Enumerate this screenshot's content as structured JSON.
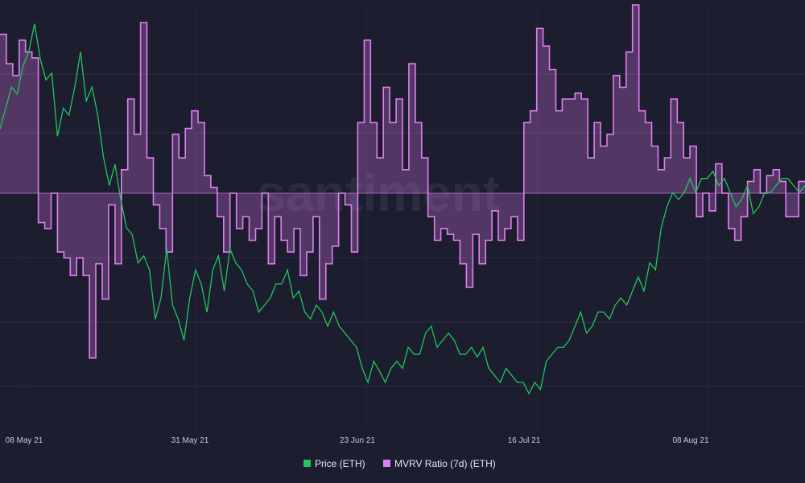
{
  "chart_data": {
    "type": "line",
    "title": "",
    "xlabel": "",
    "ylabel": "",
    "x_ticks": [
      "08 May 21",
      "31 May 21",
      "23 Jun 21",
      "16 Jul 21",
      "08 Aug 21"
    ],
    "grid": true,
    "watermark": "santiment",
    "legend": {
      "placement": "bottom-center"
    },
    "series": [
      {
        "name": "Price (ETH)",
        "color": "#22c55e",
        "values": [
          3600,
          3750,
          3900,
          3850,
          4050,
          4150,
          4350,
          4100,
          3950,
          4000,
          3550,
          3750,
          3700,
          3900,
          4150,
          3800,
          3900,
          3700,
          3400,
          3200,
          3350,
          3100,
          2900,
          2850,
          2650,
          2700,
          2600,
          2250,
          2400,
          2750,
          2350,
          2250,
          2100,
          2400,
          2600,
          2500,
          2300,
          2600,
          2700,
          2450,
          2750,
          2650,
          2600,
          2500,
          2450,
          2300,
          2350,
          2400,
          2500,
          2500,
          2600,
          2400,
          2450,
          2300,
          2250,
          2350,
          2300,
          2200,
          2300,
          2200,
          2150,
          2100,
          2050,
          1900,
          1800,
          1950,
          1880,
          1800,
          1900,
          1950,
          1900,
          2050,
          2000,
          2000,
          2150,
          2200,
          2050,
          2100,
          2150,
          2100,
          2000,
          2000,
          2050,
          1980,
          2050,
          1900,
          1850,
          1800,
          1900,
          1850,
          1800,
          1800,
          1720,
          1800,
          1750,
          1950,
          2000,
          2050,
          2050,
          2100,
          2200,
          2300,
          2150,
          2200,
          2300,
          2300,
          2250,
          2350,
          2400,
          2350,
          2450,
          2550,
          2450,
          2650,
          2600,
          2900,
          3050,
          3150,
          3100,
          3150,
          3250,
          3150,
          3250,
          3250,
          3300,
          3200,
          3250,
          3150,
          3050,
          3100,
          3200,
          3000,
          3050,
          3150,
          3150,
          3200,
          3250,
          3250,
          3200,
          3150,
          3200
        ]
      },
      {
        "name": "MVRV Ratio (7d) (ETH)",
        "color": "#e07ff0",
        "values": [
          1.35,
          1.1,
          1.0,
          1.3,
          1.2,
          1.15,
          -0.25,
          -0.3,
          0.0,
          -0.5,
          -0.55,
          -0.7,
          -0.55,
          -0.7,
          -1.4,
          -0.6,
          -0.9,
          -0.1,
          -0.6,
          0.2,
          0.8,
          0.5,
          1.45,
          0.3,
          -0.1,
          -0.3,
          -0.5,
          0.5,
          0.3,
          0.55,
          0.7,
          0.6,
          0.15,
          0.05,
          -0.2,
          -0.5,
          0.0,
          -0.3,
          -0.2,
          -0.4,
          -0.3,
          0.0,
          -0.6,
          -0.2,
          -0.4,
          -0.5,
          -0.3,
          -0.7,
          -0.5,
          -0.2,
          -0.9,
          -0.6,
          -0.45,
          0.0,
          -0.1,
          -0.5,
          0.6,
          1.3,
          0.6,
          0.3,
          0.9,
          0.6,
          0.8,
          0.2,
          1.1,
          0.6,
          0.3,
          -0.2,
          -0.4,
          -0.3,
          -0.35,
          -0.4,
          -0.6,
          -0.8,
          -0.35,
          -0.6,
          -0.4,
          -0.15,
          -0.4,
          -0.3,
          -0.2,
          -0.4,
          0.6,
          0.7,
          1.4,
          1.25,
          1.05,
          0.7,
          0.8,
          0.8,
          0.85,
          0.8,
          0.3,
          0.6,
          0.4,
          0.5,
          1.0,
          0.9,
          1.2,
          1.6,
          0.7,
          0.6,
          0.4,
          0.2,
          0.3,
          0.8,
          0.6,
          0.3,
          0.4,
          -0.2,
          0.0,
          -0.15,
          0.25,
          0.0,
          -0.3,
          -0.4,
          -0.2,
          0.1,
          0.2,
          0.0,
          0.15,
          0.2,
          0.1,
          -0.2,
          -0.2,
          0.1,
          0.1
        ]
      }
    ]
  }
}
